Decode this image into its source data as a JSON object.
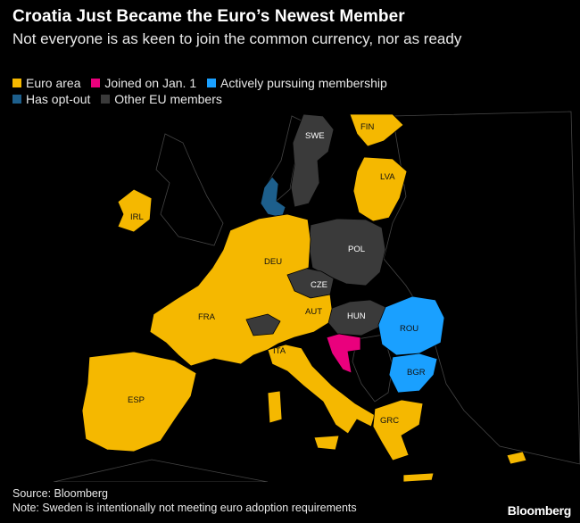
{
  "header": {
    "title": "Croatia Just Became the Euro’s Newest Member",
    "subtitle": "Not everyone is as keen to join the common currency, nor as ready"
  },
  "legend": [
    {
      "label": "Euro area",
      "color": "#f5b800"
    },
    {
      "label": "Joined on Jan. 1",
      "color": "#ea007d"
    },
    {
      "label": "Actively pursuing membership",
      "color": "#1aa0ff"
    },
    {
      "label": "Has opt-out",
      "color": "#1d5f8c"
    },
    {
      "label": "Other EU members",
      "color": "#3a3a3a"
    }
  ],
  "map": {
    "countries": [
      {
        "code": "FIN",
        "category": "Euro area"
      },
      {
        "code": "SWE",
        "category": "Other EU members"
      },
      {
        "code": "LVA",
        "category": "Euro area"
      },
      {
        "code": "IRL",
        "category": "Euro area"
      },
      {
        "code": "DEU",
        "category": "Euro area"
      },
      {
        "code": "POL",
        "category": "Other EU members"
      },
      {
        "code": "CZE",
        "category": "Other EU members"
      },
      {
        "code": "FRA",
        "category": "Euro area"
      },
      {
        "code": "AUT",
        "category": "Euro area"
      },
      {
        "code": "HUN",
        "category": "Other EU members"
      },
      {
        "code": "ROU",
        "category": "Actively pursuing membership"
      },
      {
        "code": "ITA",
        "category": "Euro area"
      },
      {
        "code": "BGR",
        "category": "Actively pursuing membership"
      },
      {
        "code": "ESP",
        "category": "Euro area"
      },
      {
        "code": "GRC",
        "category": "Euro area"
      }
    ]
  },
  "footer": {
    "source": "Source: Bloomberg",
    "note": "Note: Sweden is intentionally not meeting euro adoption requirements"
  },
  "brand": "Bloomberg"
}
